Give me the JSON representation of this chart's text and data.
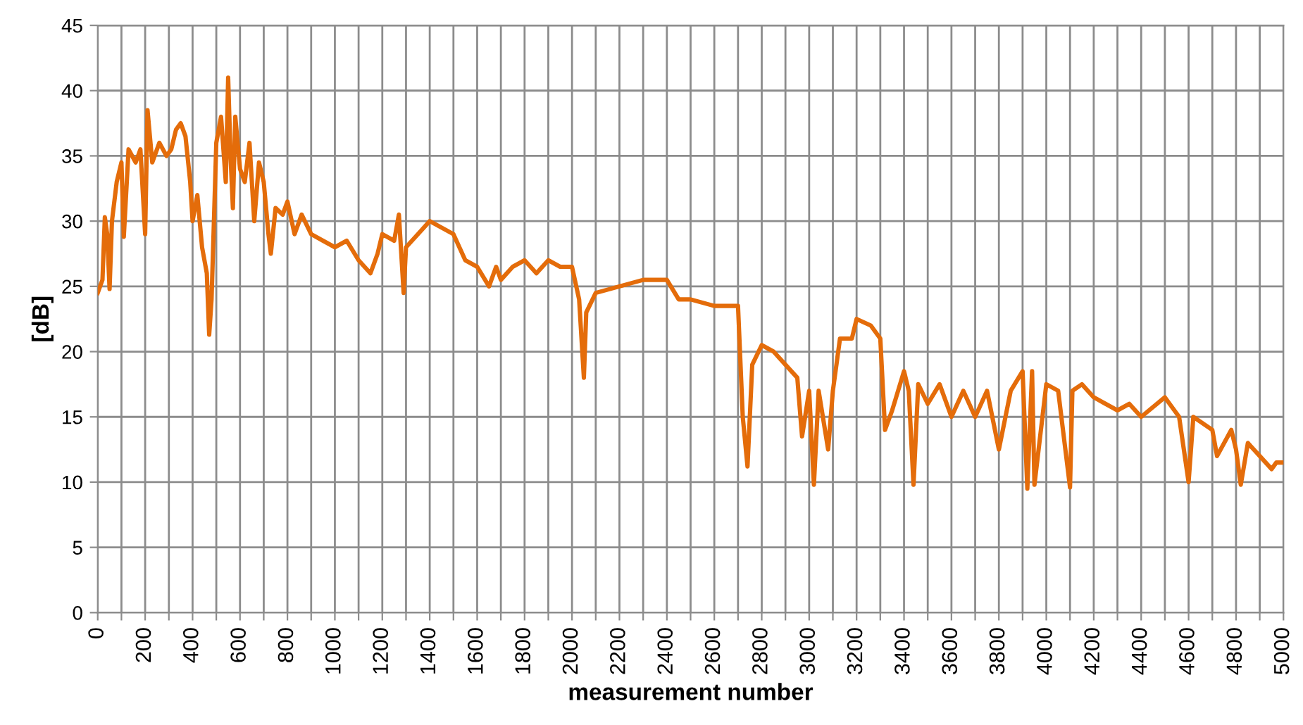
{
  "chart_data": {
    "type": "line",
    "xlabel": "measurement number",
    "ylabel": "[dB]",
    "xlim": [
      0,
      5000
    ],
    "ylim": [
      0,
      45
    ],
    "xticks": [
      0,
      {
        "value": 100,
        "label": null
      },
      200,
      {
        "value": 300,
        "label": null
      },
      400,
      {
        "value": 500,
        "label": null
      },
      600,
      {
        "value": 700,
        "label": null
      },
      800,
      {
        "value": 900,
        "label": null
      },
      1000,
      {
        "value": 1100,
        "label": null
      },
      1200,
      {
        "value": 1300,
        "label": null
      },
      1400,
      {
        "value": 1500,
        "label": null
      },
      1600,
      {
        "value": 1700,
        "label": null
      },
      1800,
      {
        "value": 1900,
        "label": null
      },
      2000,
      {
        "value": 2100,
        "label": null
      },
      2200,
      {
        "value": 2300,
        "label": null
      },
      2400,
      {
        "value": 2500,
        "label": null
      },
      2600,
      {
        "value": 2700,
        "label": null
      },
      2800,
      {
        "value": 2900,
        "label": null
      },
      3000,
      {
        "value": 3100,
        "label": null
      },
      3200,
      {
        "value": 3300,
        "label": null
      },
      3400,
      {
        "value": 3500,
        "label": null
      },
      3600,
      {
        "value": 3700,
        "label": null
      },
      3800,
      {
        "value": 3900,
        "label": null
      },
      4000,
      {
        "value": 4100,
        "label": null
      },
      4200,
      {
        "value": 4300,
        "label": null
      },
      4400,
      {
        "value": 4500,
        "label": null
      },
      4600,
      {
        "value": 4700,
        "label": null
      },
      4800,
      {
        "value": 4900,
        "label": null
      },
      5000
    ],
    "yticks": [
      0,
      5,
      10,
      15,
      20,
      25,
      30,
      35,
      40,
      45
    ],
    "grid": true,
    "marker": "none",
    "line_style": "solid",
    "series": [
      {
        "color": "#e46c0a",
        "x": [
          0,
          20,
          30,
          40,
          50,
          60,
          80,
          100,
          110,
          130,
          160,
          180,
          200,
          210,
          230,
          260,
          290,
          310,
          330,
          350,
          370,
          390,
          400,
          420,
          440,
          460,
          470,
          480,
          500,
          520,
          540,
          550,
          560,
          570,
          580,
          600,
          620,
          640,
          660,
          680,
          700,
          720,
          730,
          750,
          780,
          800,
          830,
          860,
          900,
          950,
          1000,
          1050,
          1100,
          1150,
          1180,
          1200,
          1250,
          1270,
          1290,
          1300,
          1350,
          1400,
          1450,
          1500,
          1550,
          1600,
          1650,
          1680,
          1700,
          1750,
          1800,
          1850,
          1900,
          1950,
          2000,
          2030,
          2050,
          2060,
          2100,
          2200,
          2300,
          2400,
          2450,
          2500,
          2600,
          2660,
          2700,
          2720,
          2740,
          2760,
          2800,
          2850,
          2900,
          2950,
          2970,
          3000,
          3020,
          3040,
          3080,
          3100,
          3130,
          3180,
          3200,
          3260,
          3300,
          3320,
          3350,
          3400,
          3420,
          3440,
          3460,
          3500,
          3550,
          3600,
          3650,
          3700,
          3750,
          3800,
          3850,
          3900,
          3920,
          3940,
          3950,
          4000,
          4050,
          4100,
          4110,
          4150,
          4200,
          4250,
          4300,
          4350,
          4400,
          4500,
          4560,
          4600,
          4620,
          4700,
          4720,
          4780,
          4800,
          4820,
          4850,
          4900,
          4950,
          4970,
          5000
        ],
        "values": [
          24.5,
          25.5,
          30.3,
          29,
          24.8,
          30,
          33,
          34.5,
          28.8,
          35.5,
          34.5,
          35.5,
          29,
          38.5,
          34.5,
          36,
          35,
          35.5,
          37,
          37.5,
          36.5,
          33,
          30,
          32,
          28,
          26,
          21.3,
          24,
          36,
          38,
          33,
          41,
          35,
          31,
          38,
          34,
          33,
          36,
          30,
          34.5,
          33,
          29,
          27.5,
          31,
          30.5,
          31.5,
          29,
          30.5,
          29,
          28.5,
          28,
          28.5,
          27,
          26,
          27.5,
          29,
          28.5,
          30.5,
          24.5,
          28,
          29,
          30,
          29.5,
          29,
          27,
          26.5,
          25,
          26.5,
          25.5,
          26.5,
          27,
          26,
          27,
          26.5,
          26.5,
          24,
          18,
          23,
          24.5,
          25,
          25.5,
          25.5,
          24,
          24,
          23.5,
          23.5,
          23.5,
          15,
          11.2,
          19,
          20.5,
          20,
          19,
          18,
          13.5,
          17,
          9.8,
          17,
          12.5,
          17,
          21,
          21,
          22.5,
          22,
          21,
          14,
          15.5,
          18.5,
          17,
          9.8,
          17.5,
          16,
          17.5,
          15,
          17,
          15,
          17,
          12.5,
          17,
          18.5,
          9.5,
          18.5,
          9.8,
          17.5,
          17,
          9.6,
          17,
          17.5,
          16.5,
          16,
          15.5,
          16,
          15,
          16.5,
          15,
          10,
          15,
          14,
          12,
          14,
          12.5,
          9.8,
          13,
          12,
          11,
          11.5,
          11.5
        ]
      }
    ]
  }
}
